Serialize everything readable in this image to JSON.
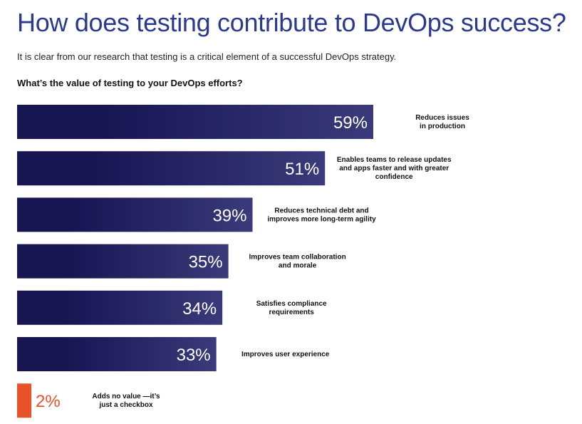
{
  "header": {
    "title": "How does testing contribute to DevOps success?",
    "subtitle": "It is clear from our research that testing is a critical element of a successful DevOps strategy.",
    "question": "What’s the value of testing to your DevOps efforts?"
  },
  "colors": {
    "title": "#2b3a8f",
    "bar_dark": "#161451",
    "bar_light": "#3b3a7a",
    "highlight": "#e8532a"
  },
  "chart_data": {
    "type": "bar",
    "orientation": "horizontal",
    "unit": "%",
    "categories": [
      [
        "Reduces issues",
        "in production"
      ],
      [
        "Enables teams to release updates",
        "and apps faster and with greater",
        "confidence"
      ],
      [
        "Reduces technical debt and",
        "improves more long-term agility"
      ],
      [
        "Improves team collaboration",
        "and morale"
      ],
      [
        "Satisfies compliance",
        "requirements"
      ],
      [
        "Improves user experience"
      ],
      [
        "Adds no value —it’s",
        "just a checkbox"
      ]
    ],
    "values": [
      59,
      51,
      39,
      35,
      34,
      33,
      2
    ],
    "value_labels": [
      "59%",
      "51%",
      "39%",
      "35%",
      "34%",
      "33%",
      "2%"
    ],
    "highlight_index": 6,
    "xlim": [
      0,
      59
    ],
    "grid": false,
    "legend": "none"
  }
}
